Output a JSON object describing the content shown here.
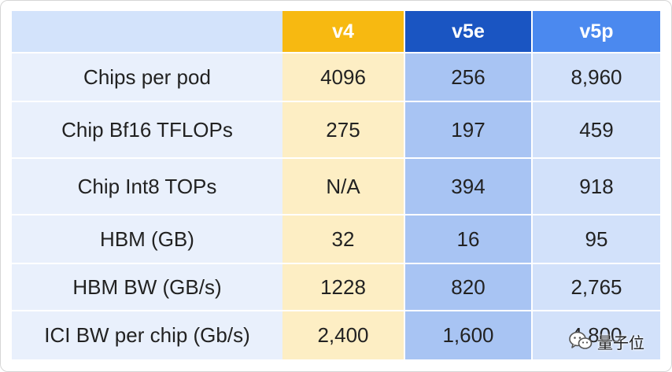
{
  "table": {
    "headers": [
      "",
      "v4",
      "v5e",
      "v5p"
    ],
    "rows": [
      {
        "label": "Chips per pod",
        "v4": "4096",
        "v5e": "256",
        "v5p": "8,960"
      },
      {
        "label": "Chip Bf16 TFLOPs",
        "v4": "275",
        "v5e": "197",
        "v5p": "459"
      },
      {
        "label": "Chip Int8 TOPs",
        "v4": "N/A",
        "v5e": "394",
        "v5p": "918"
      },
      {
        "label": "HBM (GB)",
        "v4": "32",
        "v5e": "16",
        "v5p": "95"
      },
      {
        "label": "HBM BW (GB/s)",
        "v4": "1228",
        "v5e": "820",
        "v5p": "2,765"
      },
      {
        "label": "ICI BW per chip (Gb/s)",
        "v4": "2,400",
        "v5e": "1,600",
        "v5p": "4,800"
      }
    ]
  },
  "colors": {
    "v4_header": "#f7b911",
    "v5e_header": "#1a55c2",
    "v5p_header": "#4b89ef",
    "label_header": "#d3e3fb",
    "v4_cells": "#fdeec4",
    "v5e_cells": "#a8c4f3",
    "v5p_cells": "#d2e1fa",
    "label_cells": "#e9f0fc"
  },
  "watermark": {
    "text": "量子位",
    "icon": "wechat-icon"
  }
}
